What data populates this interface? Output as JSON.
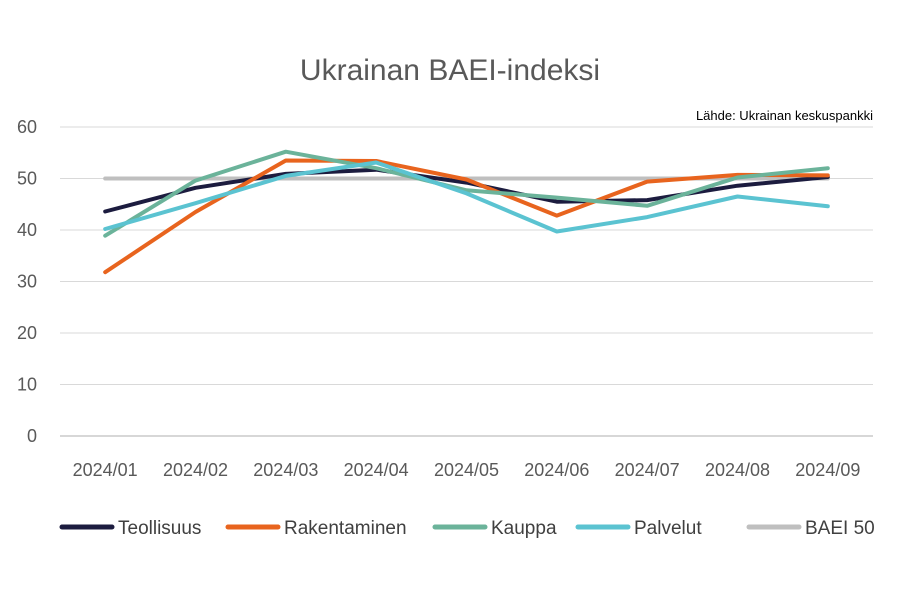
{
  "chart_data": {
    "type": "line",
    "title": "Ukrainan BAEI-indeksi",
    "source": "Lähde: Ukrainan keskuspankki",
    "categories": [
      "2024/01",
      "2024/02",
      "2024/03",
      "2024/04",
      "2024/05",
      "2024/06",
      "2024/07",
      "2024/08",
      "2024/09"
    ],
    "ylim": [
      0,
      60
    ],
    "yticks": [
      0,
      10,
      20,
      30,
      40,
      50,
      60
    ],
    "grid": true,
    "legend_position": "bottom",
    "series": [
      {
        "name": "Teollisuus",
        "color": "#1c1c3f",
        "values": [
          43.6,
          48.2,
          50.9,
          51.7,
          49.2,
          45.5,
          45.8,
          48.6,
          50.3
        ]
      },
      {
        "name": "Rakentaminen",
        "color": "#e8641e",
        "values": [
          31.8,
          43.5,
          53.5,
          53.4,
          49.8,
          42.8,
          49.4,
          50.7,
          50.6
        ]
      },
      {
        "name": "Kauppa",
        "color": "#6bb39a",
        "values": [
          38.9,
          49.6,
          55.2,
          52.0,
          47.7,
          46.3,
          44.7,
          50.2,
          52.0
        ]
      },
      {
        "name": "Palvelut",
        "color": "#5bc3d1",
        "values": [
          40.2,
          45.2,
          50.5,
          53.1,
          47.1,
          39.7,
          42.5,
          46.5,
          44.6
        ]
      },
      {
        "name": "BAEI 50",
        "color": "#bfbfbf",
        "values": [
          50,
          50,
          50,
          50,
          50,
          50,
          50,
          50,
          50
        ]
      }
    ]
  }
}
